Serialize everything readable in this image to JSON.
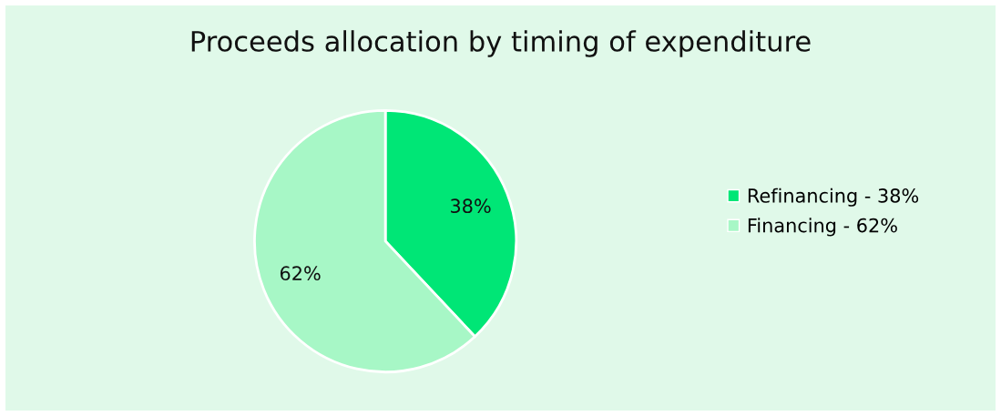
{
  "chart_data": {
    "type": "pie",
    "title": "Proceeds allocation by timing of expenditure",
    "categories": [
      "Refinancing - 38%",
      "Financing - 62%"
    ],
    "values": [
      38,
      62
    ],
    "colors": [
      "#00e676",
      "#a7f7c6"
    ],
    "value_labels": [
      "38%",
      "62%"
    ],
    "legend": "right"
  }
}
